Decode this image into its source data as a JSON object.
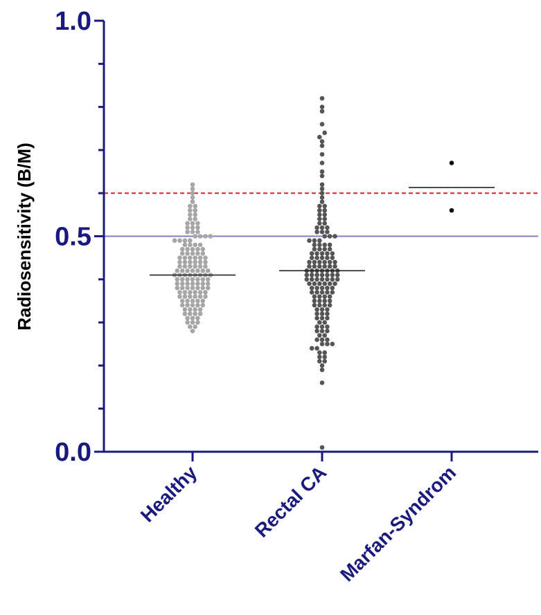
{
  "chart_data": {
    "type": "scatter",
    "subtype": "dot-plot",
    "ylabel": "Radiosensitivity (B/M)",
    "xlabel": "",
    "ylim": [
      0.0,
      1.0
    ],
    "yticks": [
      "0.0",
      "0.5",
      "1.0"
    ],
    "categories": [
      "Healthy",
      "Rectal CA",
      "Marfan-Syndrom"
    ],
    "reference_lines": [
      {
        "value": 0.5,
        "style": "solid",
        "color": "#7b7fc4"
      },
      {
        "value": 0.6,
        "style": "dashed",
        "color": "#e02020"
      }
    ],
    "series": [
      {
        "color": "#a6a6a6",
        "median": 0.41,
        "values": [
          0.28,
          0.29,
          0.29,
          0.3,
          0.3,
          0.3,
          0.31,
          0.31,
          0.31,
          0.32,
          0.32,
          0.32,
          0.32,
          0.33,
          0.33,
          0.33,
          0.33,
          0.34,
          0.34,
          0.34,
          0.34,
          0.34,
          0.35,
          0.35,
          0.35,
          0.35,
          0.35,
          0.36,
          0.36,
          0.36,
          0.36,
          0.36,
          0.36,
          0.37,
          0.37,
          0.37,
          0.37,
          0.37,
          0.37,
          0.38,
          0.38,
          0.38,
          0.38,
          0.38,
          0.38,
          0.38,
          0.39,
          0.39,
          0.39,
          0.39,
          0.39,
          0.39,
          0.39,
          0.4,
          0.4,
          0.4,
          0.4,
          0.4,
          0.4,
          0.4,
          0.41,
          0.41,
          0.41,
          0.41,
          0.41,
          0.41,
          0.41,
          0.41,
          0.42,
          0.42,
          0.42,
          0.42,
          0.42,
          0.42,
          0.42,
          0.43,
          0.43,
          0.43,
          0.43,
          0.43,
          0.43,
          0.44,
          0.44,
          0.44,
          0.44,
          0.44,
          0.44,
          0.45,
          0.45,
          0.45,
          0.45,
          0.45,
          0.45,
          0.46,
          0.46,
          0.46,
          0.46,
          0.46,
          0.47,
          0.47,
          0.47,
          0.47,
          0.47,
          0.48,
          0.48,
          0.48,
          0.48,
          0.49,
          0.49,
          0.49,
          0.49,
          0.5,
          0.5,
          0.5,
          0.5,
          0.51,
          0.51,
          0.51,
          0.52,
          0.52,
          0.52,
          0.53,
          0.53,
          0.53,
          0.54,
          0.54,
          0.55,
          0.55,
          0.56,
          0.56,
          0.57,
          0.57,
          0.58,
          0.59,
          0.6,
          0.61,
          0.62
        ]
      },
      {
        "color": "#555555",
        "median": 0.42,
        "values": [
          0.01,
          0.16,
          0.19,
          0.2,
          0.21,
          0.21,
          0.22,
          0.22,
          0.23,
          0.23,
          0.24,
          0.24,
          0.25,
          0.25,
          0.25,
          0.26,
          0.26,
          0.26,
          0.27,
          0.27,
          0.28,
          0.28,
          0.28,
          0.29,
          0.29,
          0.29,
          0.3,
          0.3,
          0.31,
          0.31,
          0.31,
          0.32,
          0.32,
          0.32,
          0.33,
          0.33,
          0.33,
          0.34,
          0.34,
          0.34,
          0.34,
          0.35,
          0.35,
          0.35,
          0.35,
          0.36,
          0.36,
          0.36,
          0.36,
          0.37,
          0.37,
          0.37,
          0.37,
          0.37,
          0.38,
          0.38,
          0.38,
          0.38,
          0.38,
          0.39,
          0.39,
          0.39,
          0.39,
          0.39,
          0.39,
          0.4,
          0.4,
          0.4,
          0.4,
          0.4,
          0.4,
          0.4,
          0.41,
          0.41,
          0.41,
          0.41,
          0.41,
          0.41,
          0.41,
          0.42,
          0.42,
          0.42,
          0.42,
          0.42,
          0.42,
          0.42,
          0.43,
          0.43,
          0.43,
          0.43,
          0.43,
          0.43,
          0.44,
          0.44,
          0.44,
          0.44,
          0.44,
          0.44,
          0.45,
          0.45,
          0.45,
          0.45,
          0.45,
          0.46,
          0.46,
          0.46,
          0.46,
          0.46,
          0.47,
          0.47,
          0.47,
          0.47,
          0.48,
          0.48,
          0.48,
          0.48,
          0.49,
          0.49,
          0.49,
          0.5,
          0.5,
          0.5,
          0.51,
          0.51,
          0.51,
          0.52,
          0.52,
          0.52,
          0.53,
          0.53,
          0.54,
          0.54,
          0.55,
          0.55,
          0.56,
          0.56,
          0.57,
          0.57,
          0.58,
          0.59,
          0.6,
          0.61,
          0.62,
          0.64,
          0.65,
          0.67,
          0.69,
          0.71,
          0.72,
          0.73,
          0.74,
          0.76,
          0.79,
          0.8,
          0.82
        ]
      },
      {
        "color": "#111111",
        "median": 0.613,
        "values": [
          0.56,
          0.67
        ]
      }
    ]
  }
}
